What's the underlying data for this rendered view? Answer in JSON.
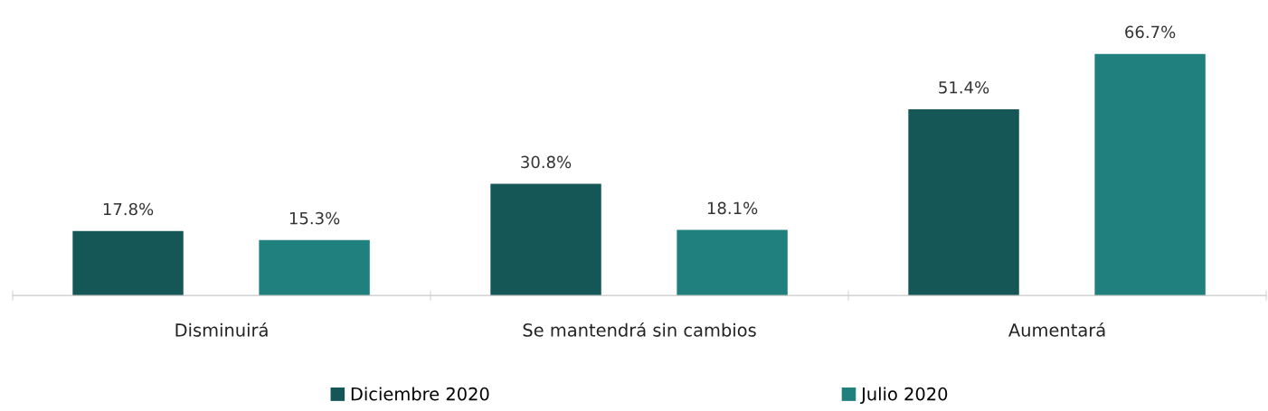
{
  "chart_data": {
    "type": "bar",
    "categories": [
      "Disminuirá",
      "Se mantendrá sin cambios",
      "Aumentará"
    ],
    "series": [
      {
        "name": "Diciembre 2020",
        "color": "#155757",
        "values": [
          17.8,
          30.8,
          51.4
        ],
        "value_labels": [
          "17.8%",
          "30.8%",
          "51.4%"
        ]
      },
      {
        "name": "Julio 2020",
        "color": "#1f807d",
        "values": [
          15.3,
          18.1,
          66.7
        ],
        "value_labels": [
          "15.3%",
          "18.1%",
          "66.7%"
        ]
      }
    ],
    "tick_labels": "x",
    "grid": false,
    "legend": "bottom"
  }
}
